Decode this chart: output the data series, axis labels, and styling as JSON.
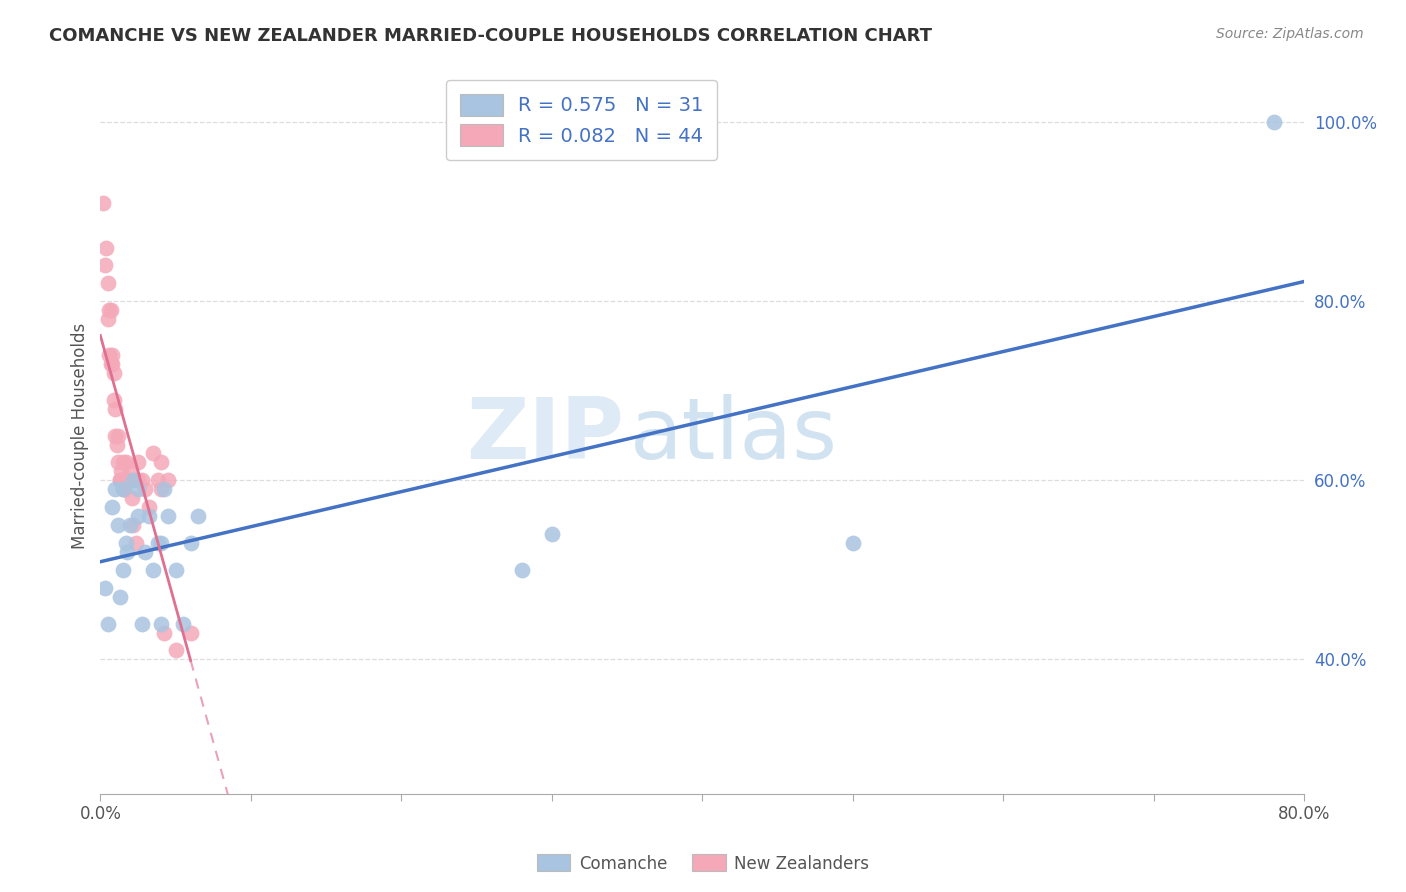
{
  "title": "COMANCHE VS NEW ZEALANDER MARRIED-COUPLE HOUSEHOLDS CORRELATION CHART",
  "source": "Source: ZipAtlas.com",
  "ylabel": "Married-couple Households",
  "xlim": [
    0.0,
    0.8
  ],
  "ylim": [
    0.25,
    1.05
  ],
  "comanche_R": 0.575,
  "comanche_N": 31,
  "nz_R": 0.082,
  "nz_N": 44,
  "comanche_color": "#a8c4e0",
  "nz_color": "#f4a8b8",
  "comanche_line_color": "#4472c4",
  "nz_line_color": "#e07090",
  "legend_label_comanche": "Comanche",
  "legend_label_nz": "New Zealanders",
  "watermark_zip": "ZIP",
  "watermark_atlas": "atlas",
  "background_color": "#ffffff",
  "grid_color": "#dddddd",
  "comanche_x": [
    0.003,
    0.005,
    0.008,
    0.01,
    0.012,
    0.013,
    0.015,
    0.015,
    0.017,
    0.018,
    0.02,
    0.022,
    0.025,
    0.025,
    0.028,
    0.03,
    0.032,
    0.035,
    0.038,
    0.04,
    0.04,
    0.042,
    0.045,
    0.05,
    0.055,
    0.06,
    0.065,
    0.28,
    0.3,
    0.5,
    0.78
  ],
  "comanche_y": [
    0.48,
    0.44,
    0.57,
    0.59,
    0.55,
    0.47,
    0.59,
    0.5,
    0.53,
    0.52,
    0.55,
    0.6,
    0.59,
    0.56,
    0.44,
    0.52,
    0.56,
    0.5,
    0.53,
    0.44,
    0.53,
    0.59,
    0.56,
    0.5,
    0.44,
    0.53,
    0.56,
    0.5,
    0.54,
    0.53,
    1.0
  ],
  "nz_x": [
    0.002,
    0.003,
    0.004,
    0.005,
    0.005,
    0.006,
    0.006,
    0.007,
    0.007,
    0.008,
    0.008,
    0.009,
    0.009,
    0.01,
    0.01,
    0.011,
    0.012,
    0.012,
    0.013,
    0.013,
    0.014,
    0.015,
    0.015,
    0.016,
    0.017,
    0.018,
    0.019,
    0.02,
    0.021,
    0.022,
    0.024,
    0.025,
    0.025,
    0.028,
    0.03,
    0.032,
    0.035,
    0.038,
    0.04,
    0.04,
    0.042,
    0.045,
    0.05,
    0.06
  ],
  "nz_y": [
    0.91,
    0.84,
    0.86,
    0.82,
    0.78,
    0.79,
    0.74,
    0.73,
    0.79,
    0.74,
    0.73,
    0.72,
    0.69,
    0.68,
    0.65,
    0.64,
    0.65,
    0.62,
    0.6,
    0.6,
    0.61,
    0.59,
    0.62,
    0.59,
    0.62,
    0.6,
    0.6,
    0.61,
    0.58,
    0.55,
    0.53,
    0.6,
    0.62,
    0.6,
    0.59,
    0.57,
    0.63,
    0.6,
    0.62,
    0.59,
    0.43,
    0.6,
    0.41,
    0.43
  ]
}
